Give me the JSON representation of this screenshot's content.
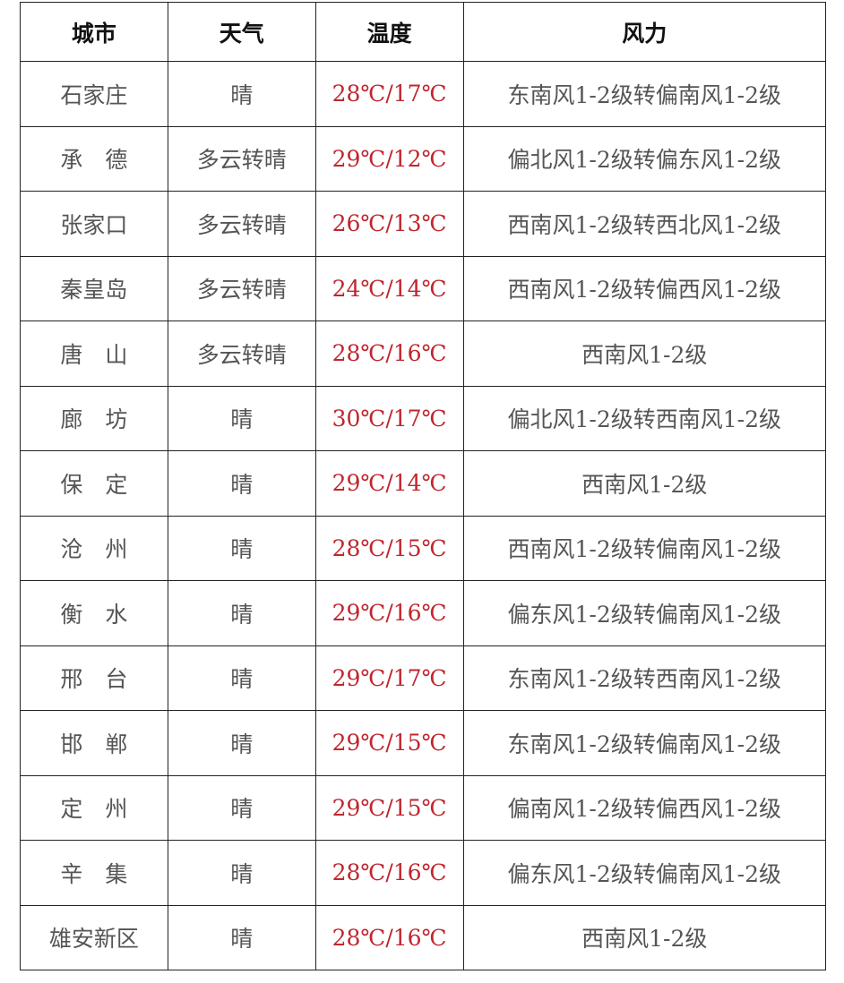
{
  "headers": [
    "城市",
    "天气",
    "温度",
    "风力"
  ],
  "rows": [
    {
      "city": "石家庄",
      "weather": "晴",
      "temp": "28℃/17℃",
      "wind": "东南风1-2级转偏南风1-2级"
    },
    {
      "city": "承　德",
      "weather": "多云转晴",
      "temp": "29℃/12℃",
      "wind": "偏北风1-2级转偏东风1-2级"
    },
    {
      "city": "张家口",
      "weather": "多云转晴",
      "temp": "26℃/13℃",
      "wind": "西南风1-2级转西北风1-2级"
    },
    {
      "city": "秦皇岛",
      "weather": "多云转晴",
      "temp": "24℃/14℃",
      "wind": "西南风1-2级转偏西风1-2级"
    },
    {
      "city": "唐　山",
      "weather": "多云转晴",
      "temp": "28℃/16℃",
      "wind": "西南风1-2级"
    },
    {
      "city": "廊　坊",
      "weather": "晴",
      "temp": "30℃/17℃",
      "wind": "偏北风1-2级转西南风1-2级"
    },
    {
      "city": "保　定",
      "weather": "晴",
      "temp": "29℃/14℃",
      "wind": "西南风1-2级"
    },
    {
      "city": "沧　州",
      "weather": "晴",
      "temp": "28℃/15℃",
      "wind": "西南风1-2级转偏南风1-2级"
    },
    {
      "city": "衡　水",
      "weather": "晴",
      "temp": "29℃/16℃",
      "wind": "偏东风1-2级转偏南风1-2级"
    },
    {
      "city": "邢　台",
      "weather": "晴",
      "temp": "29℃/17℃",
      "wind": "东南风1-2级转西南风1-2级"
    },
    {
      "city": "邯　郸",
      "weather": "晴",
      "temp": "29℃/15℃",
      "wind": "东南风1-2级转偏南风1-2级"
    },
    {
      "city": "定　州",
      "weather": "晴",
      "temp": "29℃/15℃",
      "wind": "偏南风1-2级转偏西风1-2级"
    },
    {
      "city": "辛　集",
      "weather": "晴",
      "temp": "28℃/16℃",
      "wind": "偏东风1-2级转偏南风1-2级"
    },
    {
      "city": "雄安新区",
      "weather": "晴",
      "temp": "28℃/16℃",
      "wind": "西南风1-2级"
    }
  ],
  "colors": {
    "temperature": "#c0262e",
    "text": "#555555",
    "header": "#111111"
  }
}
